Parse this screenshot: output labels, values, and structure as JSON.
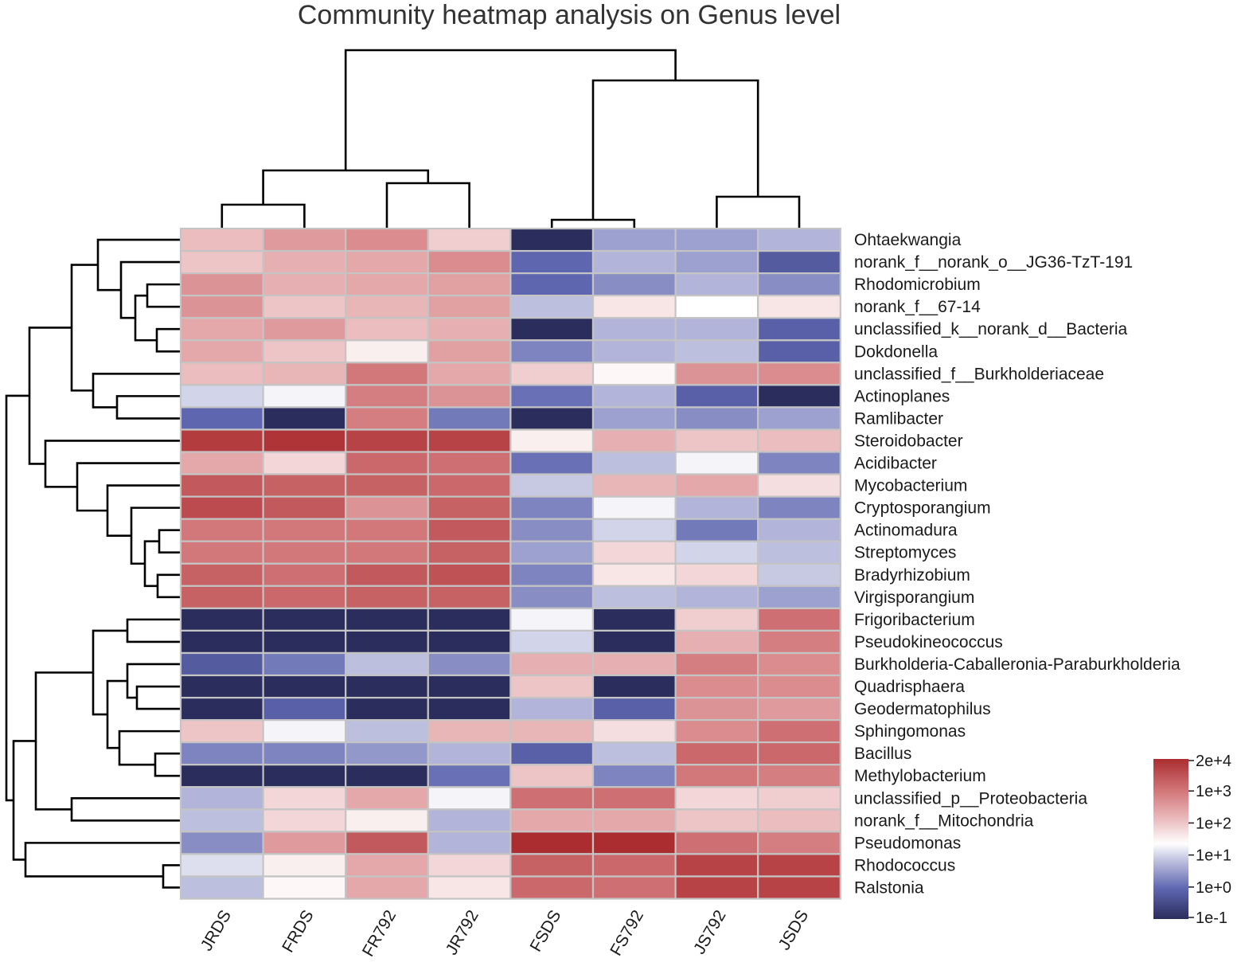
{
  "chart_data": {
    "type": "heatmap",
    "title": "Community heatmap analysis on Genus level",
    "columns": [
      "JRDS",
      "FRDS",
      "FR792",
      "JR792",
      "FSDS",
      "FS792",
      "JS792",
      "JSDS"
    ],
    "rows": [
      "Ohtaekwangia",
      "norank_f__norank_o__JG36-TzT-191",
      "Rhodomicrobium",
      "norank_f__67-14",
      "unclassified_k__norank_d__Bacteria",
      "Dokdonella",
      "unclassified_f__Burkholderiaceae",
      "Actinoplanes",
      "Ramlibacter",
      "Steroidobacter",
      "Acidibacter",
      "Mycobacterium",
      "Cryptosporangium",
      "Actinomadura",
      "Streptomyces",
      "Bradyrhizobium",
      "Virgisporangium",
      "Frigoribacterium",
      "Pseudokineococcus",
      "Burkholderia-Caballeronia-Paraburkholderia",
      "Quadrisphaera",
      "Geodermatophilus",
      "Sphingomonas",
      "Bacillus",
      "Methylobacterium",
      "unclassified_p__Proteobacteria",
      "norank_f__Mitochondria",
      "Pseudomonas",
      "Rhodococcus",
      "Ralstonia"
    ],
    "log10_values": [
      [
        2.3,
        2.8,
        3.0,
        2.1,
        -1.0,
        0.6,
        0.6,
        0.8
      ],
      [
        2.2,
        2.5,
        2.6,
        3.0,
        0.0,
        0.8,
        0.6,
        -0.2
      ],
      [
        2.9,
        2.5,
        2.6,
        2.7,
        0.0,
        0.4,
        0.8,
        0.4
      ],
      [
        2.9,
        2.2,
        2.4,
        2.7,
        0.9,
        1.8,
        1.5,
        1.8
      ],
      [
        2.6,
        2.8,
        2.3,
        2.5,
        -1.0,
        0.8,
        0.8,
        -0.1
      ],
      [
        2.6,
        2.2,
        1.7,
        2.7,
        0.3,
        0.8,
        0.9,
        -0.1
      ],
      [
        2.3,
        2.4,
        3.3,
        2.6,
        2.1,
        1.6,
        2.9,
        3.0
      ],
      [
        1.1,
        1.4,
        3.2,
        2.9,
        0.1,
        0.8,
        -0.1,
        -1.0
      ],
      [
        0.0,
        -1.0,
        3.2,
        0.2,
        -1.0,
        0.6,
        0.4,
        0.6
      ],
      [
        4.1,
        4.2,
        4.0,
        4.0,
        1.7,
        2.5,
        2.2,
        2.3
      ],
      [
        2.6,
        2.0,
        3.5,
        3.4,
        0.1,
        0.9,
        1.4,
        0.3
      ],
      [
        3.7,
        3.6,
        3.6,
        3.5,
        1.0,
        2.4,
        2.6,
        1.9
      ],
      [
        3.9,
        3.7,
        2.9,
        3.6,
        0.3,
        1.4,
        0.8,
        0.3
      ],
      [
        3.3,
        3.3,
        3.3,
        3.7,
        0.4,
        1.1,
        0.2,
        0.8
      ],
      [
        3.3,
        3.3,
        3.3,
        3.6,
        0.6,
        2.0,
        1.1,
        0.9
      ],
      [
        3.6,
        3.4,
        3.7,
        3.8,
        0.3,
        1.8,
        2.0,
        1.0
      ],
      [
        3.6,
        3.5,
        3.6,
        3.6,
        0.4,
        0.9,
        0.8,
        0.6
      ],
      [
        -1.0,
        -1.0,
        -1.0,
        -1.0,
        1.4,
        -1.0,
        2.1,
        3.4
      ],
      [
        -1.0,
        -1.0,
        -1.0,
        -1.0,
        1.1,
        -1.0,
        2.5,
        3.2
      ],
      [
        -0.2,
        0.2,
        0.9,
        0.4,
        2.5,
        2.5,
        3.2,
        3.0
      ],
      [
        -1.0,
        -1.0,
        -1.0,
        -1.0,
        2.2,
        -1.0,
        3.0,
        3.0
      ],
      [
        -1.0,
        -0.1,
        -1.0,
        -1.0,
        0.8,
        -0.1,
        2.9,
        2.8
      ],
      [
        2.2,
        1.4,
        0.9,
        2.4,
        2.4,
        1.9,
        3.0,
        3.4
      ],
      [
        0.3,
        0.3,
        0.5,
        0.8,
        -0.1,
        0.9,
        3.5,
        3.5
      ],
      [
        -1.0,
        -1.0,
        -1.0,
        0.1,
        2.2,
        0.3,
        3.3,
        3.2
      ],
      [
        0.8,
        2.0,
        2.6,
        1.4,
        3.4,
        3.4,
        2.0,
        2.1
      ],
      [
        0.9,
        2.0,
        1.7,
        0.8,
        2.6,
        2.6,
        2.2,
        2.3
      ],
      [
        0.4,
        2.8,
        3.7,
        0.8,
        4.3,
        4.4,
        3.4,
        3.2
      ],
      [
        1.2,
        1.7,
        2.6,
        2.0,
        3.6,
        3.5,
        4.0,
        4.0
      ],
      [
        0.9,
        1.6,
        2.6,
        1.8,
        3.5,
        3.4,
        4.0,
        4.0
      ]
    ],
    "colorbar": {
      "labels": [
        "2e+4",
        "1e+3",
        "1e+2",
        "1e+1",
        "1e+0",
        "1e-1"
      ],
      "range_log10": [
        -1,
        4.3
      ],
      "colors": [
        "#2b2d5c",
        "#5e66b0",
        "#ffffff",
        "#dc8a8d",
        "#ab2d30"
      ]
    },
    "dendrogram": "hierarchical clustering on rows (left) and columns (top)"
  }
}
